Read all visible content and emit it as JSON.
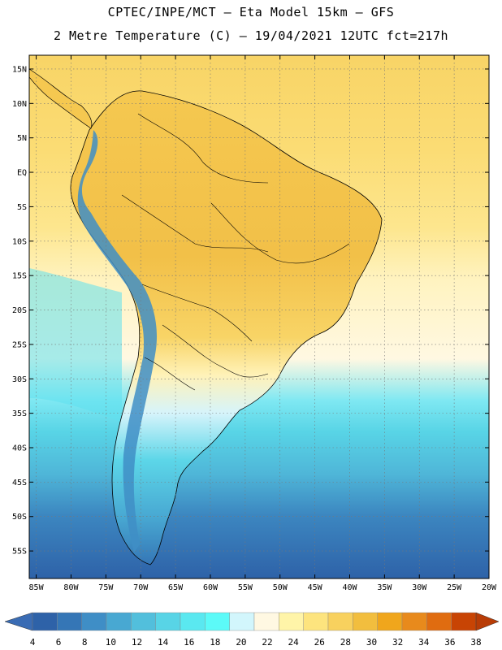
{
  "title": {
    "line1": "CPTEC/INPE/MCT –  Eta Model 15km – GFS",
    "line2": "2 Metre Temperature (C) – 19/04/2021 12UTC fct=217h"
  },
  "map": {
    "lat_labels": [
      "15N",
      "10N",
      "5N",
      "EQ",
      "5S",
      "10S",
      "15S",
      "20S",
      "25S",
      "30S",
      "35S",
      "40S",
      "45S",
      "50S",
      "55S"
    ],
    "lat_values": [
      15,
      10,
      5,
      0,
      -5,
      -10,
      -15,
      -20,
      -25,
      -30,
      -35,
      -40,
      -45,
      -50,
      -55
    ],
    "lon_labels": [
      "85W",
      "80W",
      "75W",
      "70W",
      "65W",
      "60W",
      "55W",
      "50W",
      "45W",
      "40W",
      "35W",
      "30W",
      "25W",
      "20W"
    ],
    "lon_values": [
      -85,
      -80,
      -75,
      -70,
      -65,
      -60,
      -55,
      -50,
      -45,
      -40,
      -35,
      -30,
      -25,
      -20
    ],
    "lon_range": [
      -86,
      -20
    ],
    "lat_range": [
      -59,
      17
    ]
  },
  "colorbar": {
    "labels": [
      "4",
      "6",
      "8",
      "10",
      "12",
      "14",
      "16",
      "18",
      "20",
      "22",
      "24",
      "26",
      "28",
      "30",
      "32",
      "34",
      "36",
      "38"
    ],
    "colors": [
      "#2e62a8",
      "#3576b6",
      "#3f8ec6",
      "#48a8d2",
      "#52bfdc",
      "#58d4e6",
      "#5ae8f0",
      "#5cfaf8",
      "#d2f6fc",
      "#fff8e2",
      "#fff4a8",
      "#fde47e",
      "#f8d15e",
      "#f2be3e",
      "#f0a61c",
      "#e88a1c",
      "#e06c10",
      "#c84404"
    ],
    "low_color": "#3a6cb4",
    "high_color": "#b83c06"
  }
}
